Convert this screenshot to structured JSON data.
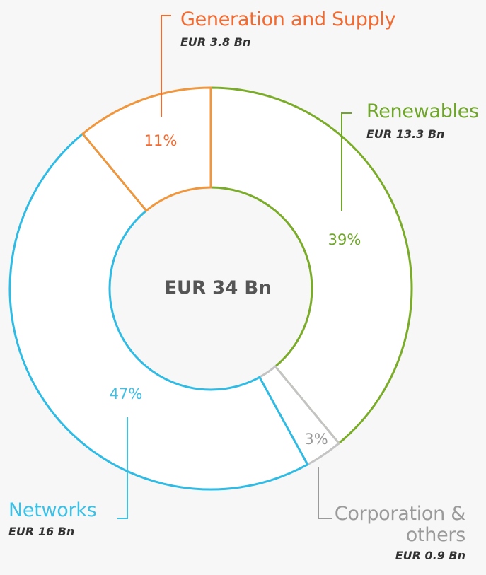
{
  "chart_data": {
    "type": "donut",
    "center_label": "EUR 34 Bn",
    "categories": [
      "Renewables",
      "Corporation & others",
      "Networks",
      "Generation and Supply"
    ],
    "values": [
      39,
      3,
      47,
      11
    ],
    "value_labels": [
      "39%",
      "3%",
      "47%",
      "11%"
    ],
    "amounts": [
      "EUR 13.3 Bn",
      "EUR 0.9 Bn",
      "EUR 16 Bn",
      "EUR 3.8 Bn"
    ],
    "colors": [
      "#7aac2a",
      "#c4c4c4",
      "#2fbbe4",
      "#f0963c"
    ],
    "label_colors": [
      "#6fa52a",
      "#9a9a9a",
      "#3cc0e6",
      "#f26a30"
    ]
  }
}
